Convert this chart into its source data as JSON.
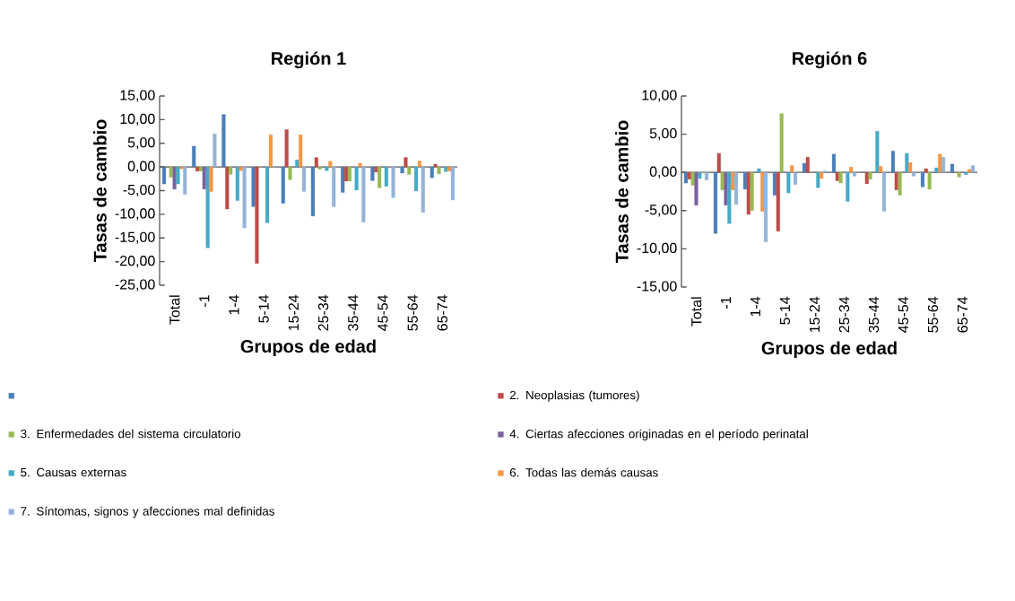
{
  "chart_data": [
    {
      "type": "bar",
      "title": "Región 1",
      "xlabel": "Grupos de edad",
      "ylabel": "Tasas de cambio",
      "categories": [
        "Total",
        "-1",
        "1-4",
        "5-14",
        "15-24",
        "25-34",
        "35-44",
        "45-54",
        "55-64",
        "65-74"
      ],
      "series": [
        {
          "color": "#4a7ebb",
          "values": [
            -3.6,
            4.4,
            11.1,
            -8.4,
            -7.7,
            -10.4,
            -5.4,
            -2.9,
            -1.3,
            -2.3
          ]
        },
        {
          "name": "2. Neoplasias (tumores)",
          "color": "#be4b48",
          "values": [
            0,
            -0.9,
            -8.9,
            -20.4,
            7.9,
            2.0,
            -3.0,
            -1.1,
            2.0,
            0.6
          ]
        },
        {
          "name": "3. Enfermedades del sistema circulatorio",
          "color": "#98b954",
          "values": [
            -2.2,
            -0.9,
            -1.6,
            0,
            -2.7,
            -0.5,
            -3.0,
            -4.4,
            -1.6,
            -1.5
          ]
        },
        {
          "name": "4. Ciertas afecciones originadas en el período perinatal",
          "color": "#7d60a0",
          "values": [
            -4.7,
            -4.7,
            0,
            0,
            0,
            0,
            0,
            0,
            0,
            0
          ]
        },
        {
          "name": "5. Causas externas",
          "color": "#46aac5",
          "values": [
            -3.6,
            -17.1,
            -7.1,
            -11.8,
            1.5,
            -0.8,
            -4.9,
            -4.1,
            -5.1,
            -1.0
          ]
        },
        {
          "name": "6. Todas las demás causas",
          "color": "#f79646",
          "values": [
            -0.4,
            -5.2,
            -0.8,
            6.8,
            6.8,
            1.2,
            0.8,
            0,
            1.3,
            -0.9
          ]
        },
        {
          "name": "7. Síntomas, signos y afecciones mal definidas",
          "color": "#95b3d7",
          "values": [
            -5.8,
            7.0,
            -12.9,
            0,
            -5.2,
            -8.4,
            -11.7,
            -6.5,
            -9.6,
            -7.0
          ]
        }
      ],
      "ylim": [
        -25,
        15
      ],
      "yticks": [
        {
          "value": -25,
          "label": "-25,00"
        },
        {
          "value": -20,
          "label": "-20,00"
        },
        {
          "value": -15,
          "label": "-15,00"
        },
        {
          "value": -10,
          "label": "-10,00"
        },
        {
          "value": -5,
          "label": "-5,00"
        },
        {
          "value": 0,
          "label": "0,00"
        },
        {
          "value": 5,
          "label": "5,00"
        },
        {
          "value": 10,
          "label": "10,00"
        },
        {
          "value": 15,
          "label": "15,00"
        }
      ],
      "legend": "bottom"
    },
    {
      "type": "bar",
      "title": "Región 6",
      "xlabel": "Grupos de edad",
      "ylabel": "Tasas de cambio",
      "categories": [
        "Total",
        "-1",
        "1-4",
        "5-14",
        "15-24",
        "25-34",
        "35-44",
        "45-54",
        "55-64",
        "65-74"
      ],
      "series": [
        {
          "color": "#4a7ebb",
          "values": [
            -1.4,
            -8.0,
            -2.2,
            -3.0,
            1.2,
            2.4,
            0,
            2.8,
            -1.9,
            1.1
          ]
        },
        {
          "color": "#be4b48",
          "values": [
            -0.9,
            2.5,
            -5.5,
            -7.7,
            2.0,
            -1.1,
            -1.5,
            -2.3,
            0.5,
            0
          ]
        },
        {
          "color": "#98b954",
          "values": [
            -1.7,
            -2.3,
            -5.0,
            7.7,
            0,
            -1.4,
            -0.9,
            -3.0,
            -2.2,
            -0.6
          ]
        },
        {
          "color": "#7d60a0",
          "values": [
            -4.3,
            -4.3,
            0,
            0,
            0,
            0,
            0,
            0,
            0,
            0
          ]
        },
        {
          "color": "#46aac5",
          "values": [
            -0.8,
            -6.7,
            0.5,
            -2.7,
            -2.0,
            -3.8,
            5.4,
            2.5,
            0.6,
            -0.3
          ]
        },
        {
          "color": "#f79646",
          "values": [
            0,
            -2.3,
            -5.1,
            0.9,
            -0.8,
            0.7,
            0.8,
            1.3,
            2.4,
            0.4
          ]
        },
        {
          "color": "#95b3d7",
          "values": [
            -1.0,
            -4.2,
            -9.1,
            -1.6,
            0.2,
            -0.5,
            -5.1,
            -0.5,
            2.0,
            0.9
          ]
        }
      ],
      "ylim": [
        -15,
        10
      ],
      "yticks": [
        {
          "value": -15,
          "label": "-15,00"
        },
        {
          "value": -10,
          "label": "-10,00"
        },
        {
          "value": -5,
          "label": "-5,00"
        },
        {
          "value": 0,
          "label": "0,00"
        },
        {
          "value": 5,
          "label": "5,00"
        },
        {
          "value": 10,
          "label": "10,00"
        }
      ]
    }
  ]
}
